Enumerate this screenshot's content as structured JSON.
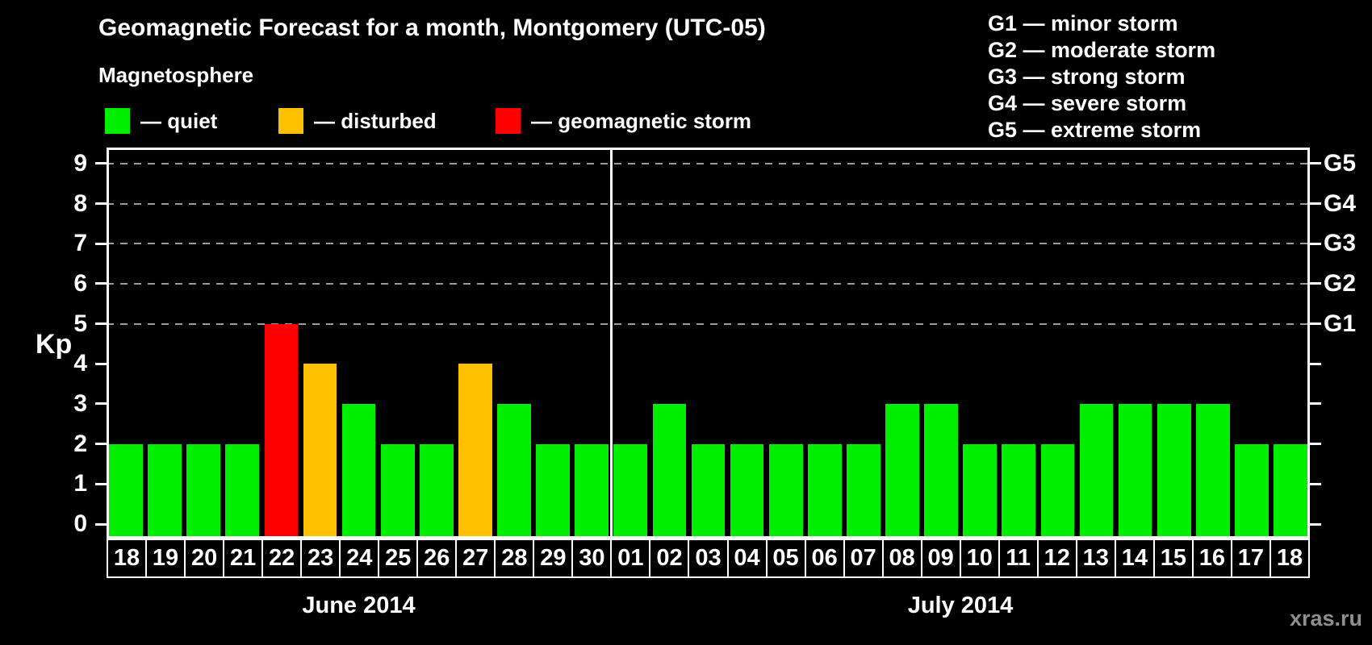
{
  "title": "Geomagnetic Forecast for a month, Montgomery (UTC-05)",
  "legend": {
    "heading": "Magnetosphere",
    "items": [
      {
        "label": "— quiet",
        "color": "#00ee00"
      },
      {
        "label": "— disturbed",
        "color": "#ffc000"
      },
      {
        "label": "— geomagnetic storm",
        "color": "#ff0000"
      }
    ]
  },
  "g_scale_legend": [
    "G1 — minor storm",
    "G2 — moderate storm",
    "G3 — strong storm",
    "G4 — severe storm",
    "G5 — extreme storm"
  ],
  "watermark": "xras.ru",
  "chart_data": {
    "type": "bar",
    "title": "Geomagnetic Forecast for a month, Montgomery (UTC-05)",
    "ylabel": "Kp",
    "ylim": [
      -0.36,
      9.4
    ],
    "y_ticks": [
      0,
      1,
      2,
      3,
      4,
      5,
      6,
      7,
      8,
      9
    ],
    "gridlines_at": [
      5,
      6,
      7,
      8,
      9
    ],
    "grid": "dashed horizontal at Kp 5-9 only",
    "legend_position": "top",
    "right_axis": [
      {
        "kp": 5,
        "label": "G1"
      },
      {
        "kp": 6,
        "label": "G2"
      },
      {
        "kp": 7,
        "label": "G3"
      },
      {
        "kp": 8,
        "label": "G4"
      },
      {
        "kp": 9,
        "label": "G5"
      }
    ],
    "state_colors": {
      "quiet": "#00ee00",
      "disturbed": "#ffc000",
      "storm": "#ff0000"
    },
    "months": [
      {
        "label": "June 2014",
        "days": 13
      },
      {
        "label": "July 2014",
        "days": 18
      }
    ],
    "days": [
      {
        "day": "18",
        "kp": 2,
        "state": "quiet"
      },
      {
        "day": "19",
        "kp": 2,
        "state": "quiet"
      },
      {
        "day": "20",
        "kp": 2,
        "state": "quiet"
      },
      {
        "day": "21",
        "kp": 2,
        "state": "quiet"
      },
      {
        "day": "22",
        "kp": 5,
        "state": "storm"
      },
      {
        "day": "23",
        "kp": 4,
        "state": "disturbed"
      },
      {
        "day": "24",
        "kp": 3,
        "state": "quiet"
      },
      {
        "day": "25",
        "kp": 2,
        "state": "quiet"
      },
      {
        "day": "26",
        "kp": 2,
        "state": "quiet"
      },
      {
        "day": "27",
        "kp": 4,
        "state": "disturbed"
      },
      {
        "day": "28",
        "kp": 3,
        "state": "quiet"
      },
      {
        "day": "29",
        "kp": 2,
        "state": "quiet"
      },
      {
        "day": "30",
        "kp": 2,
        "state": "quiet"
      },
      {
        "day": "01",
        "kp": 2,
        "state": "quiet"
      },
      {
        "day": "02",
        "kp": 3,
        "state": "quiet"
      },
      {
        "day": "03",
        "kp": 2,
        "state": "quiet"
      },
      {
        "day": "04",
        "kp": 2,
        "state": "quiet"
      },
      {
        "day": "05",
        "kp": 2,
        "state": "quiet"
      },
      {
        "day": "06",
        "kp": 2,
        "state": "quiet"
      },
      {
        "day": "07",
        "kp": 2,
        "state": "quiet"
      },
      {
        "day": "08",
        "kp": 3,
        "state": "quiet"
      },
      {
        "day": "09",
        "kp": 3,
        "state": "quiet"
      },
      {
        "day": "10",
        "kp": 2,
        "state": "quiet"
      },
      {
        "day": "11",
        "kp": 2,
        "state": "quiet"
      },
      {
        "day": "12",
        "kp": 2,
        "state": "quiet"
      },
      {
        "day": "13",
        "kp": 3,
        "state": "quiet"
      },
      {
        "day": "14",
        "kp": 3,
        "state": "quiet"
      },
      {
        "day": "15",
        "kp": 3,
        "state": "quiet"
      },
      {
        "day": "16",
        "kp": 3,
        "state": "quiet"
      },
      {
        "day": "17",
        "kp": 2,
        "state": "quiet"
      },
      {
        "day": "18",
        "kp": 2,
        "state": "quiet"
      }
    ]
  }
}
